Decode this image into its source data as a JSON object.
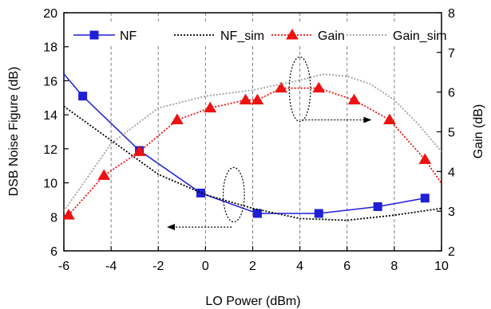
{
  "chart_data": {
    "type": "line",
    "xlabel": "LO Power (dBm)",
    "ylabel_left": "DSB Noise Figure (dB)",
    "ylabel_right": "Gain (dB)",
    "xlim": [
      -6,
      10
    ],
    "ylim_left": [
      6,
      20
    ],
    "ylim_right": [
      2,
      8
    ],
    "x_ticks": [
      -6,
      -4,
      -2,
      0,
      2,
      4,
      6,
      8,
      10
    ],
    "y_left_ticks": [
      6,
      8,
      10,
      12,
      14,
      16,
      18,
      20
    ],
    "y_right_ticks": [
      2,
      3,
      4,
      5,
      6,
      7,
      8
    ],
    "legend_position": "top",
    "grid": "x-dashed",
    "series": [
      {
        "name": "NF",
        "axis": "left",
        "style": "solid",
        "marker": "square",
        "color": "#1f1fd6",
        "x": [
          -6,
          -5.2,
          -2.8,
          -0.2,
          2.2,
          4.8,
          7.3,
          9.3
        ],
        "y": [
          16.4,
          15.1,
          11.9,
          9.4,
          8.2,
          8.2,
          8.6,
          9.1
        ]
      },
      {
        "name": "NF_sim",
        "axis": "left",
        "style": "dotted",
        "marker": "none",
        "color": "#000000",
        "x": [
          -6,
          -4,
          -2,
          0,
          2,
          4,
          6,
          8,
          10
        ],
        "y": [
          14.5,
          12.5,
          10.5,
          9.3,
          8.5,
          7.9,
          7.8,
          8.1,
          8.5
        ]
      },
      {
        "name": "Gain",
        "axis": "right",
        "style": "dotted",
        "marker": "triangle",
        "color": "#ee1111",
        "x": [
          -5.8,
          -4.3,
          -2.8,
          -1.2,
          0.2,
          1.7,
          2.2,
          3.2,
          4.8,
          6.3,
          7.8,
          9.3,
          10
        ],
        "y": [
          2.9,
          3.9,
          4.5,
          5.3,
          5.6,
          5.8,
          5.8,
          6.1,
          6.1,
          5.8,
          5.3,
          4.3,
          3.7
        ]
      },
      {
        "name": "Gain_sim",
        "axis": "right",
        "style": "dotted",
        "marker": "none",
        "color": "#a0a0a0",
        "x": [
          -6,
          -4,
          -2,
          0,
          2,
          4,
          5,
          6,
          7,
          8,
          9,
          10
        ],
        "y": [
          3.0,
          4.7,
          5.6,
          5.9,
          6.05,
          6.3,
          6.45,
          6.4,
          6.2,
          5.8,
          5.2,
          4.5
        ]
      }
    ],
    "annotations": [
      {
        "id": "nf-ellipse",
        "cx": 1.2,
        "cy_left": 9.3,
        "rx": 0.45,
        "ry_left": 1.6,
        "arrow_to_x": -1.6,
        "arrow_y_left": 7.4
      },
      {
        "id": "gain-ellipse",
        "cx": 4.0,
        "cy_left": 15.5,
        "rx": 0.45,
        "ry_left": 1.9,
        "arrow_to_x": 7.0,
        "arrow_y_left": 13.7
      }
    ]
  }
}
